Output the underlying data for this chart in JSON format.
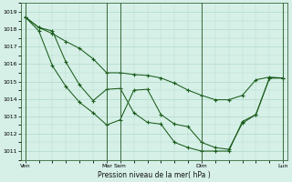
{
  "xlabel": "Pression niveau de la mer( hPa )",
  "ylim": [
    1010.5,
    1019.5
  ],
  "yticks": [
    1011,
    1012,
    1013,
    1014,
    1015,
    1016,
    1017,
    1018,
    1019
  ],
  "bg_color": "#d6f0e8",
  "grid_color": "#b0d8c8",
  "line_color": "#1a5c1a",
  "day_labels": [
    "Ven",
    "Mar",
    "Sam",
    "Dim",
    "Lun"
  ],
  "day_x": [
    0,
    6,
    7,
    13,
    19
  ],
  "n_points": 20,
  "line1_y": [
    1018.7,
    1017.9,
    1015.9,
    1014.7,
    1013.8,
    1013.2,
    1012.5,
    1012.8,
    1014.5,
    1014.55,
    1013.1,
    1012.55,
    1012.4,
    1011.5,
    1011.2,
    1011.1,
    1012.6,
    1013.1,
    1015.2,
    1015.2
  ],
  "line2_y": [
    1018.7,
    1018.1,
    1017.75,
    1017.3,
    1016.9,
    1016.3,
    1015.5,
    1015.5,
    1015.4,
    1015.35,
    1015.2,
    1014.9,
    1014.5,
    1014.2,
    1013.95,
    1013.95,
    1014.2,
    1015.1,
    1015.25,
    1015.2
  ],
  "line3_y": [
    1018.7,
    1018.1,
    1017.9,
    1016.1,
    1014.8,
    1013.9,
    1014.55,
    1014.6,
    1013.2,
    1012.65,
    1012.55,
    1011.5,
    1011.2,
    1011.0,
    1011.0,
    1011.0,
    1012.7,
    1013.1,
    1015.2,
    1015.2
  ],
  "vline_positions": [
    0,
    6,
    7,
    13,
    19
  ],
  "xlim": [
    -0.3,
    19.3
  ]
}
